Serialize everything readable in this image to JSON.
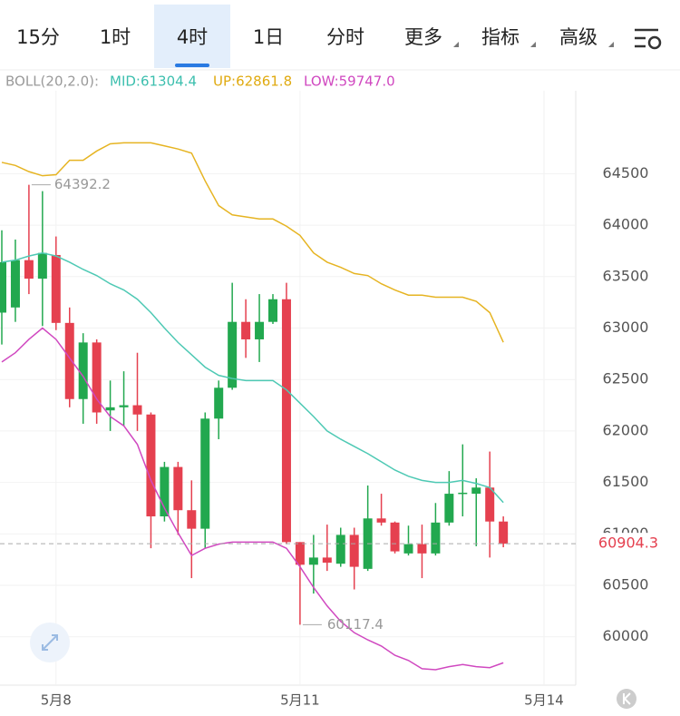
{
  "tabs": [
    "15分",
    "1时",
    "4时",
    "1日",
    "分时",
    "更多",
    "指标",
    "高级"
  ],
  "indicator": {
    "name": "BOLL(20,2.0):",
    "mid": "MID:61304.4",
    "up": "UP:62861.8",
    "low": "LOW:59747.0"
  },
  "chart_data": {
    "type": "candlestick",
    "categories": [
      null,
      null,
      null,
      null,
      "5月8",
      null,
      null,
      null,
      null,
      null,
      null,
      null,
      null,
      null,
      null,
      null,
      null,
      null,
      null,
      null,
      null,
      null,
      "5月11",
      null,
      null,
      null,
      null,
      null,
      null,
      null,
      null,
      null,
      null,
      null,
      null,
      null,
      null,
      null,
      null,
      null,
      "5月14"
    ],
    "open": [
      63150,
      63200,
      63660,
      63480,
      63710,
      63050,
      62310,
      62860,
      62200,
      62230,
      62250,
      62160,
      61170,
      61650,
      61230,
      61050,
      62120,
      62420,
      63060,
      62890,
      63060,
      63280,
      60920,
      60700,
      60770,
      60710,
      60990,
      60660,
      61150,
      61110,
      60810,
      60900,
      60810,
      61110,
      61390,
      61390,
      61450,
      61120,
      null,
      null,
      null
    ],
    "high": [
      63950,
      63860,
      64392.2,
      64330,
      63890,
      63200,
      62950,
      62890,
      62490,
      62580,
      62760,
      62180,
      61700,
      61700,
      61520,
      62180,
      62490,
      63440,
      63280,
      63330,
      63330,
      63440,
      60920,
      60990,
      61090,
      61060,
      61060,
      61470,
      61390,
      61120,
      61080,
      61090,
      61300,
      61610,
      61870,
      61540,
      61800,
      61170,
      null,
      null,
      null
    ],
    "low": [
      62840,
      63060,
      63330,
      63020,
      62980,
      62230,
      62070,
      62070,
      62000,
      62050,
      62000,
      60860,
      61120,
      60990,
      60570,
      60860,
      61920,
      62400,
      62710,
      62670,
      63040,
      60900,
      60117.4,
      60420,
      60640,
      60680,
      60460,
      60640,
      61080,
      60810,
      60790,
      60570,
      60790,
      61080,
      61170,
      60880,
      60770,
      60870,
      null,
      null,
      null
    ],
    "close": [
      63640,
      63660,
      63480,
      63730,
      63050,
      62310,
      62860,
      62180,
      62230,
      62250,
      62160,
      61170,
      61650,
      61230,
      61050,
      62120,
      62420,
      63060,
      62890,
      63060,
      63280,
      60920,
      60700,
      60770,
      60720,
      60990,
      60680,
      61150,
      61110,
      60830,
      60900,
      60810,
      61110,
      61390,
      61400,
      61450,
      61120,
      60904.3,
      null,
      null,
      null
    ],
    "up_color": "#22a84f",
    "down_color": "#e5404f",
    "series": [
      {
        "name": "UP",
        "color": "#e6b422",
        "values": [
          64610,
          64580,
          64520,
          64480,
          64490,
          64630,
          64630,
          64720,
          64790,
          64800,
          64800,
          64800,
          64770,
          64740,
          64700,
          64430,
          64190,
          64100,
          64080,
          64060,
          64060,
          63990,
          63900,
          63730,
          63640,
          63590,
          63530,
          63510,
          63430,
          63370,
          63320,
          63320,
          63300,
          63300,
          63300,
          63260,
          63150,
          62861.8,
          null,
          null,
          null
        ]
      },
      {
        "name": "MID",
        "color": "#4ec9b4",
        "values": [
          63640,
          63660,
          63700,
          63730,
          63700,
          63640,
          63570,
          63510,
          63430,
          63370,
          63280,
          63150,
          63000,
          62860,
          62740,
          62620,
          62540,
          62510,
          62490,
          62490,
          62490,
          62400,
          62270,
          62140,
          62000,
          61920,
          61850,
          61780,
          61700,
          61620,
          61560,
          61520,
          61500,
          61500,
          61520,
          61490,
          61450,
          61304.4,
          null,
          null,
          null
        ]
      },
      {
        "name": "LOW",
        "color": "#d048c0",
        "values": [
          62670,
          62760,
          62890,
          63000,
          62890,
          62710,
          62530,
          62310,
          62140,
          62050,
          61870,
          61520,
          61250,
          61010,
          60790,
          60860,
          60900,
          60920,
          60920,
          60920,
          60920,
          60860,
          60680,
          60480,
          60300,
          60150,
          60040,
          59970,
          59910,
          59820,
          59770,
          59690,
          59680,
          59710,
          59730,
          59710,
          59700,
          59747.0,
          null,
          null,
          null
        ]
      }
    ],
    "last_price": 60904.3,
    "ylim": [
      59530,
      65500
    ],
    "yticks": [
      60000,
      60500,
      61000,
      61500,
      62000,
      62500,
      63000,
      63500,
      64000,
      64500
    ],
    "grid": true
  }
}
